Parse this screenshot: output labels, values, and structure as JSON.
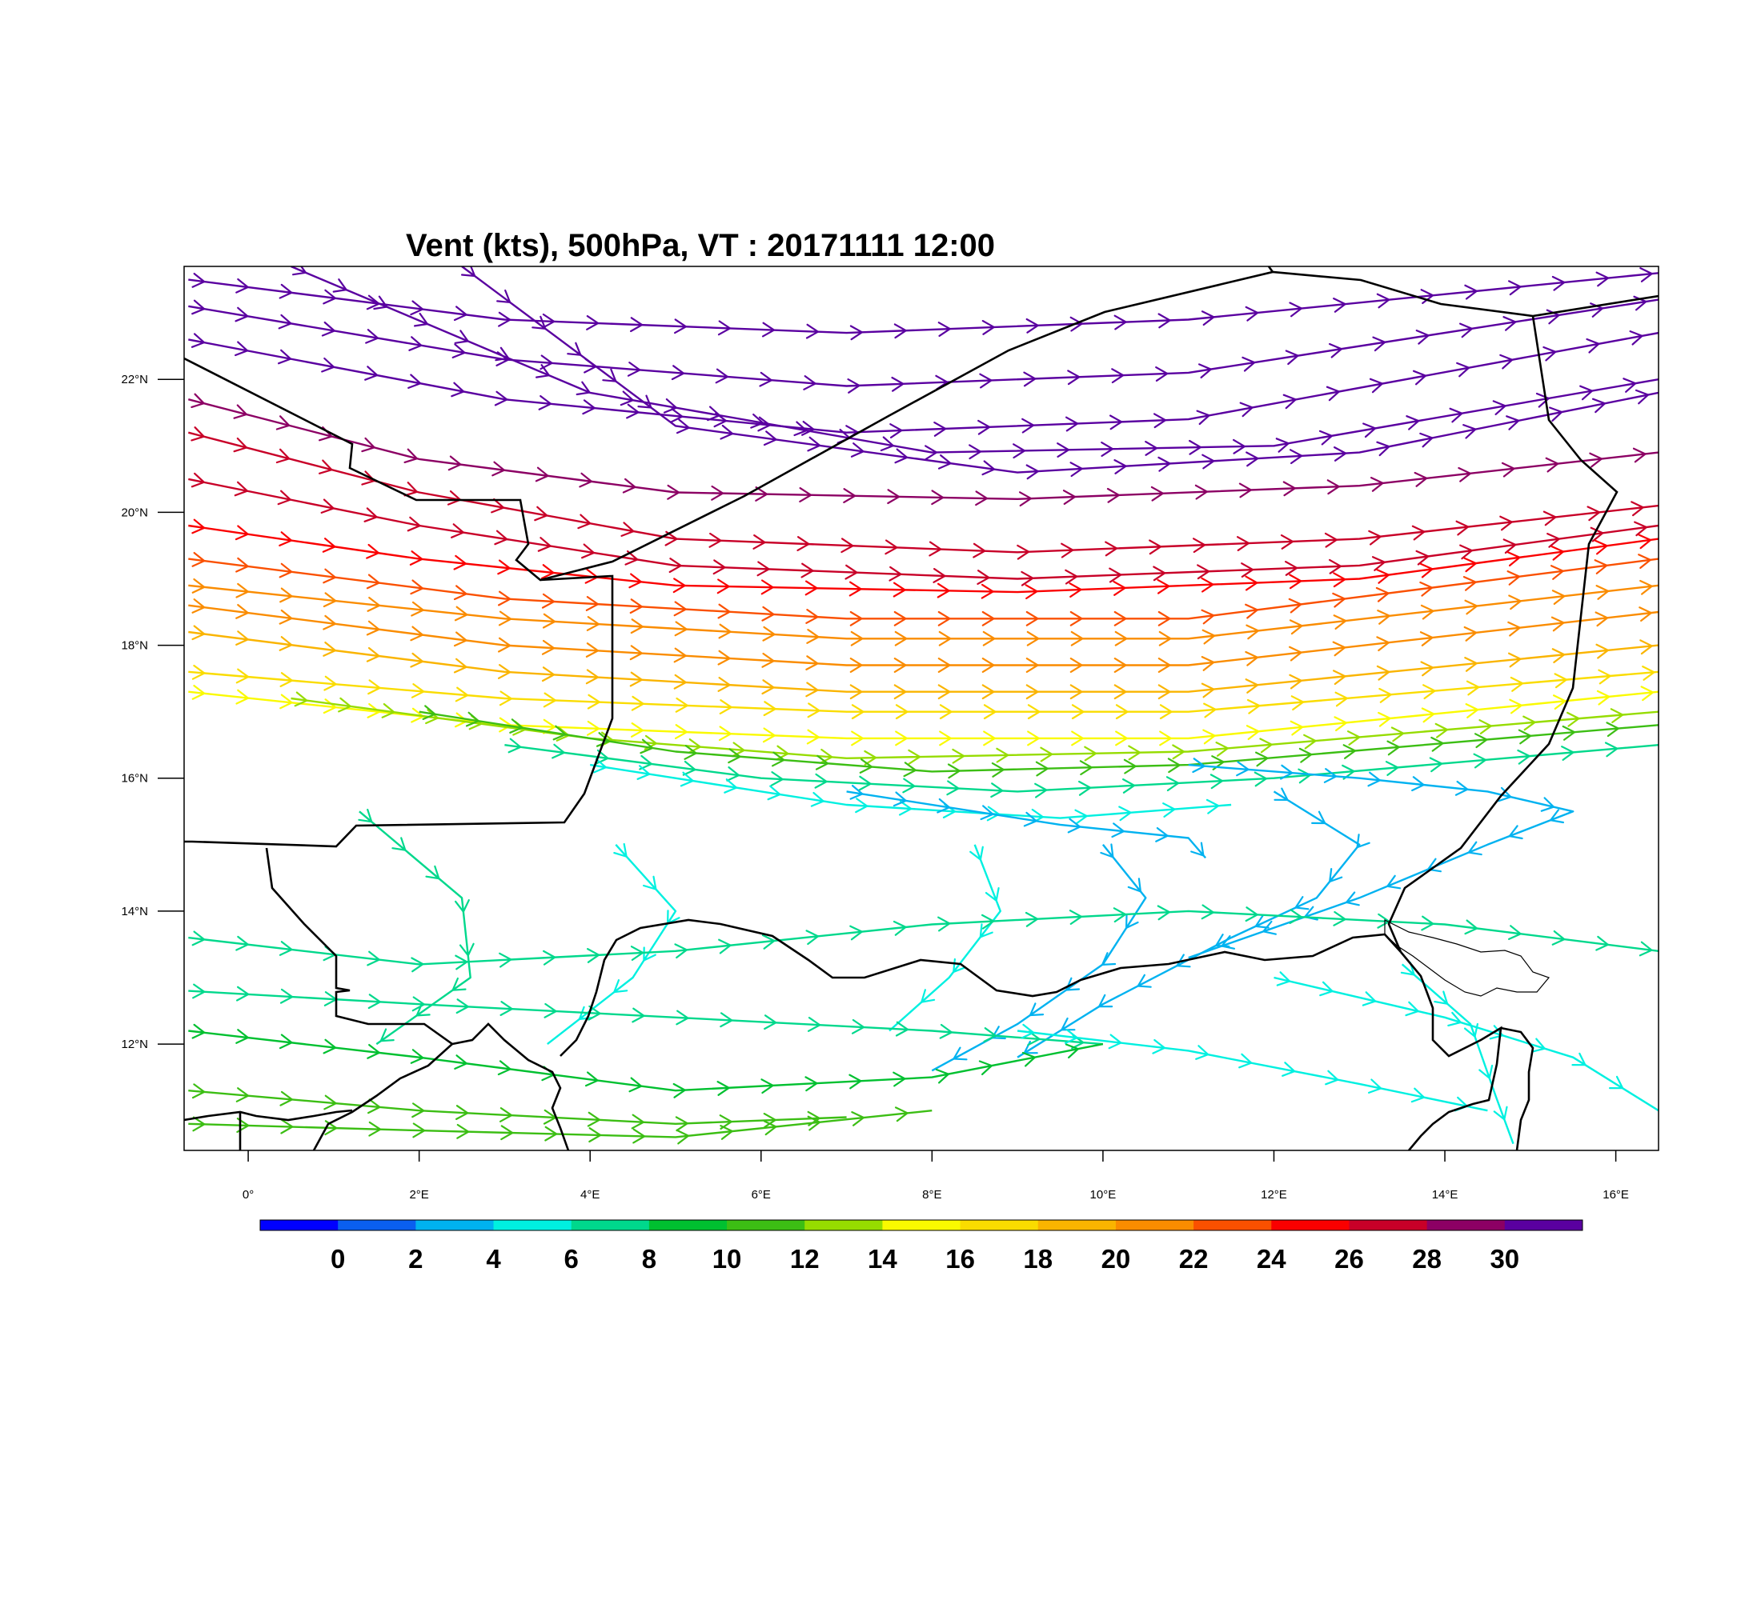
{
  "title": "Vent (kts), 500hPa, VT : 20171111  12:00",
  "map": {
    "lon_range": [
      -0.75,
      16.5
    ],
    "lat_range": [
      10.4,
      23.7
    ],
    "x_ticks": [
      {
        "lon": 0,
        "label": "0°"
      },
      {
        "lon": 2,
        "label": "2°E"
      },
      {
        "lon": 4,
        "label": "4°E"
      },
      {
        "lon": 6,
        "label": "6°E"
      },
      {
        "lon": 8,
        "label": "8°E"
      },
      {
        "lon": 10,
        "label": "10°E"
      },
      {
        "lon": 12,
        "label": "12°E"
      },
      {
        "lon": 14,
        "label": "14°E"
      },
      {
        "lon": 16,
        "label": "16°E"
      }
    ],
    "y_ticks": [
      {
        "lat": 12,
        "label": "12°N"
      },
      {
        "lat": 14,
        "label": "14°N"
      },
      {
        "lat": 16,
        "label": "16°N"
      },
      {
        "lat": 18,
        "label": "18°N"
      },
      {
        "lat": 20,
        "label": "20°N"
      },
      {
        "lat": 22,
        "label": "22°N"
      }
    ]
  },
  "colorbar": {
    "colors": [
      "#0000ff",
      "#0a5ff0",
      "#00b2f0",
      "#00f0e0",
      "#00d88c",
      "#00c030",
      "#3cbe14",
      "#96dc00",
      "#fafa00",
      "#fadc00",
      "#fab400",
      "#fa8c00",
      "#fa5000",
      "#fa0000",
      "#c80028",
      "#8c0064",
      "#5a00a0"
    ],
    "labels": [
      "0",
      "2",
      "4",
      "6",
      "8",
      "10",
      "12",
      "14",
      "16",
      "18",
      "20",
      "22",
      "24",
      "26",
      "28",
      "30"
    ]
  },
  "chart_data": {
    "type": "streamlines",
    "title": "Vent (kts), 500hPa, VT : 20171111  12:00",
    "variable": "wind speed (kts) at 500hPa",
    "valid_time": "20171111 12:00",
    "streamlines": [
      {
        "speed": 30,
        "points": [
          [
            -0.7,
            23.5
          ],
          [
            3,
            22.9
          ],
          [
            7,
            22.7
          ],
          [
            11,
            22.9
          ],
          [
            16.5,
            23.6
          ]
        ]
      },
      {
        "speed": 30,
        "points": [
          [
            -0.7,
            23.1
          ],
          [
            3,
            22.3
          ],
          [
            7,
            21.9
          ],
          [
            11,
            22.1
          ],
          [
            16.5,
            23.2
          ]
        ]
      },
      {
        "speed": 30,
        "points": [
          [
            -0.7,
            22.6
          ],
          [
            3,
            21.7
          ],
          [
            7,
            21.2
          ],
          [
            11,
            21.4
          ],
          [
            16.5,
            22.7
          ]
        ]
      },
      {
        "speed": 31,
        "points": [
          [
            0.5,
            23.7
          ],
          [
            4,
            21.8
          ],
          [
            8,
            20.9
          ],
          [
            12,
            21.0
          ],
          [
            16.5,
            22.0
          ]
        ]
      },
      {
        "speed": 30,
        "points": [
          [
            2.5,
            23.7
          ],
          [
            5,
            21.3
          ],
          [
            9,
            20.6
          ],
          [
            13,
            20.9
          ],
          [
            16.5,
            21.8
          ]
        ]
      },
      {
        "speed": 29,
        "points": [
          [
            -0.7,
            21.7
          ],
          [
            2,
            20.8
          ],
          [
            5,
            20.3
          ],
          [
            9,
            20.2
          ],
          [
            13,
            20.4
          ],
          [
            16.5,
            20.9
          ]
        ]
      },
      {
        "speed": 27,
        "points": [
          [
            -0.7,
            21.2
          ],
          [
            2,
            20.3
          ],
          [
            5,
            19.6
          ],
          [
            9,
            19.4
          ],
          [
            13,
            19.6
          ],
          [
            16.5,
            20.1
          ]
        ]
      },
      {
        "speed": 26,
        "points": [
          [
            -0.7,
            20.5
          ],
          [
            2,
            19.8
          ],
          [
            5,
            19.2
          ],
          [
            9,
            19.0
          ],
          [
            13,
            19.2
          ],
          [
            16.5,
            19.8
          ]
        ]
      },
      {
        "speed": 25,
        "points": [
          [
            -0.7,
            19.8
          ],
          [
            2,
            19.3
          ],
          [
            5,
            18.9
          ],
          [
            9,
            18.8
          ],
          [
            13,
            19.0
          ],
          [
            16.5,
            19.6
          ]
        ]
      },
      {
        "speed": 23,
        "points": [
          [
            -0.7,
            19.3
          ],
          [
            3,
            18.7
          ],
          [
            7,
            18.4
          ],
          [
            11,
            18.4
          ],
          [
            16.5,
            19.3
          ]
        ]
      },
      {
        "speed": 21,
        "points": [
          [
            -0.7,
            18.9
          ],
          [
            3,
            18.4
          ],
          [
            7,
            18.1
          ],
          [
            11,
            18.1
          ],
          [
            16.5,
            18.9
          ]
        ]
      },
      {
        "speed": 20,
        "points": [
          [
            -0.7,
            18.6
          ],
          [
            3,
            18.0
          ],
          [
            7,
            17.7
          ],
          [
            11,
            17.7
          ],
          [
            16.5,
            18.5
          ]
        ]
      },
      {
        "speed": 18,
        "points": [
          [
            -0.7,
            18.2
          ],
          [
            3,
            17.6
          ],
          [
            7,
            17.3
          ],
          [
            11,
            17.3
          ],
          [
            16.5,
            18.0
          ]
        ]
      },
      {
        "speed": 16,
        "points": [
          [
            -0.7,
            17.6
          ],
          [
            3,
            17.2
          ],
          [
            7,
            17.0
          ],
          [
            11,
            17.0
          ],
          [
            16.5,
            17.6
          ]
        ]
      },
      {
        "speed": 14,
        "points": [
          [
            -0.7,
            17.3
          ],
          [
            3,
            16.8
          ],
          [
            7,
            16.6
          ],
          [
            11,
            16.6
          ],
          [
            16.5,
            17.3
          ]
        ]
      },
      {
        "speed": 12,
        "points": [
          [
            0.5,
            17.2
          ],
          [
            4,
            16.6
          ],
          [
            7,
            16.3
          ],
          [
            11,
            16.4
          ],
          [
            16.5,
            17.0
          ]
        ]
      },
      {
        "speed": 10,
        "points": [
          [
            2,
            17.0
          ],
          [
            5,
            16.4
          ],
          [
            8,
            16.1
          ],
          [
            11,
            16.2
          ],
          [
            16.5,
            16.8
          ]
        ]
      },
      {
        "speed": 7,
        "points": [
          [
            3,
            16.5
          ],
          [
            6,
            16.0
          ],
          [
            9,
            15.8
          ],
          [
            12,
            16.0
          ],
          [
            16.5,
            16.5
          ]
        ]
      },
      {
        "speed": 5,
        "points": [
          [
            4,
            16.2
          ],
          [
            7,
            15.6
          ],
          [
            9.5,
            15.4
          ],
          [
            11.5,
            15.6
          ]
        ]
      },
      {
        "speed": 3,
        "points": [
          [
            7,
            15.8
          ],
          [
            9.5,
            15.3
          ],
          [
            11,
            15.1
          ],
          [
            11.2,
            14.8
          ]
        ]
      },
      {
        "speed": 2,
        "points": [
          [
            11,
            16.2
          ],
          [
            13,
            16.0
          ],
          [
            14.5,
            15.8
          ],
          [
            15.5,
            15.5
          ],
          [
            14.5,
            15.0
          ],
          [
            13,
            14.2
          ],
          [
            11,
            13.3
          ]
        ]
      },
      {
        "speed": 2,
        "points": [
          [
            12,
            15.8
          ],
          [
            13,
            15.0
          ],
          [
            12.5,
            14.2
          ],
          [
            11.5,
            13.6
          ],
          [
            10,
            12.6
          ],
          [
            9,
            11.8
          ]
        ]
      },
      {
        "speed": 3,
        "points": [
          [
            10,
            15.0
          ],
          [
            10.5,
            14.2
          ],
          [
            10,
            13.2
          ],
          [
            9,
            12.3
          ],
          [
            8,
            11.6
          ]
        ]
      },
      {
        "speed": 4,
        "points": [
          [
            8.5,
            15.0
          ],
          [
            8.8,
            14.0
          ],
          [
            8.2,
            13.0
          ],
          [
            7.5,
            12.2
          ]
        ]
      },
      {
        "speed": 5,
        "points": [
          [
            4.3,
            15.0
          ],
          [
            5,
            14.0
          ],
          [
            4.5,
            13.0
          ],
          [
            3.5,
            12.0
          ]
        ]
      },
      {
        "speed": 6,
        "points": [
          [
            1.3,
            15.5
          ],
          [
            2.5,
            14.2
          ],
          [
            2.6,
            13.0
          ],
          [
            1.5,
            12.0
          ]
        ]
      },
      {
        "speed": 6,
        "points": [
          [
            -0.7,
            13.6
          ],
          [
            2,
            13.2
          ],
          [
            5,
            13.4
          ],
          [
            8,
            13.8
          ],
          [
            11,
            14.0
          ],
          [
            14,
            13.8
          ],
          [
            16.5,
            13.4
          ]
        ]
      },
      {
        "speed": 7,
        "points": [
          [
            -0.7,
            12.8
          ],
          [
            2,
            12.6
          ],
          [
            5,
            12.4
          ],
          [
            8,
            12.2
          ],
          [
            10,
            12.0
          ]
        ]
      },
      {
        "speed": 9,
        "points": [
          [
            -0.7,
            12.2
          ],
          [
            2,
            11.8
          ],
          [
            5,
            11.3
          ],
          [
            8,
            11.5
          ],
          [
            10,
            12.0
          ]
        ]
      },
      {
        "speed": 11,
        "points": [
          [
            -0.7,
            11.3
          ],
          [
            2,
            11.0
          ],
          [
            5,
            10.8
          ],
          [
            7,
            10.9
          ]
        ]
      },
      {
        "speed": 10,
        "points": [
          [
            -0.7,
            10.8
          ],
          [
            2,
            10.7
          ],
          [
            5,
            10.6
          ],
          [
            8,
            11.0
          ]
        ]
      },
      {
        "speed": 4,
        "points": [
          [
            9,
            12.2
          ],
          [
            11,
            11.9
          ],
          [
            13,
            11.4
          ],
          [
            14.5,
            11.0
          ]
        ]
      },
      {
        "speed": 5,
        "points": [
          [
            12,
            13.0
          ],
          [
            14,
            12.4
          ],
          [
            15.5,
            11.8
          ],
          [
            16.5,
            11.0
          ]
        ]
      },
      {
        "speed": 4,
        "points": [
          [
            13.5,
            13.2
          ],
          [
            14.3,
            12.3
          ],
          [
            14.6,
            11.2
          ],
          [
            14.8,
            10.5
          ]
        ]
      }
    ]
  }
}
